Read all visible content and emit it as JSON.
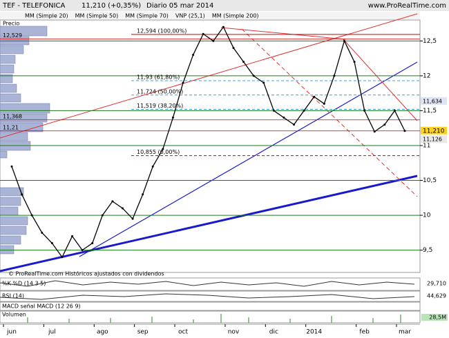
{
  "chart_data": {
    "type": "line",
    "instrument": "TEF - TELEFONICA",
    "last_price": "11,210 (+0,35%)",
    "period": "Diario  05 mar 2014",
    "site": "www.ProRealTime.com",
    "price_label": "Precio",
    "footnote": "© ProRealTime.com  Históricos ajustados con dividendos",
    "legend_items": [
      {
        "name": "MM (Simple 20)",
        "color": "#e03030"
      },
      {
        "name": "MM (Simple 50)",
        "color": "#808080"
      },
      {
        "name": "MM (Simple 70)",
        "color": "#1a1acc"
      },
      {
        "name": "VNP (25,1)",
        "color": "#b0a0e0"
      },
      {
        "name": "MM (Simple 200)",
        "color": "#1a7a1a"
      }
    ],
    "categories": [
      "jun",
      null,
      null,
      null,
      "jul",
      null,
      null,
      null,
      null,
      "ago",
      null,
      null,
      null,
      "sep",
      null,
      null,
      null,
      "oct",
      null,
      null,
      null,
      null,
      "nov",
      null,
      null,
      null,
      "dic",
      null,
      null,
      null,
      "2014",
      null,
      null,
      null,
      null,
      "feb",
      null,
      null,
      null,
      "mar"
    ],
    "series": [
      {
        "name": "Precio",
        "color": "#000000",
        "values": [
          10.7,
          10.3,
          10.0,
          9.75,
          9.6,
          9.4,
          9.7,
          9.5,
          9.6,
          10.0,
          10.2,
          10.1,
          9.95,
          10.3,
          10.7,
          10.95,
          11.4,
          11.9,
          12.3,
          12.6,
          12.5,
          12.7,
          12.4,
          12.2,
          12.0,
          11.9,
          11.5,
          11.4,
          11.3,
          11.5,
          11.7,
          11.6,
          12.0,
          12.5,
          12.2,
          11.5,
          11.2,
          11.3,
          11.5,
          11.21
        ]
      }
    ],
    "ylim": [
      9.18,
      12.8
    ],
    "yticks": [
      {
        "value": 9.5,
        "label": "9,5"
      },
      {
        "value": 10,
        "label": "10"
      },
      {
        "value": 10.5,
        "label": "10,5"
      },
      {
        "value": 11,
        "label": "11"
      },
      {
        "value": 11.5,
        "label": "11,5"
      },
      {
        "value": 12,
        "label": "12"
      },
      {
        "value": 12.5,
        "label": "12,5"
      }
    ],
    "fib_levels": [
      {
        "value": 12.594,
        "label": "12,594 (100,00%)"
      },
      {
        "value": 11.93,
        "label": "11,93 (61,80%)"
      },
      {
        "value": 11.724,
        "label": "11,724 (50,00%)"
      },
      {
        "value": 11.519,
        "label": "11,519 (38,20%)"
      },
      {
        "value": 10.855,
        "label": "10,855 (0,00%)"
      }
    ],
    "profile_labels": [
      {
        "value": 12.529,
        "label": "12,529"
      },
      {
        "value": 11.368,
        "label": "11,368"
      },
      {
        "value": 11.21,
        "label": "11,21"
      }
    ],
    "badges": [
      {
        "value": 11.634,
        "label": "11,634",
        "color": "#dde4f4"
      },
      {
        "value": 11.21,
        "label": "11,210",
        "color": "#ffd21e"
      },
      {
        "value": 11.126,
        "label": "11,126",
        "color": "#e8e8e8"
      }
    ],
    "panels": [
      {
        "label": "%K %D (14 3 5)",
        "value": "29,710"
      },
      {
        "label": "RSI (14)",
        "value": "44,629"
      },
      {
        "label": "MACD  señal  MACD (12 26 9)"
      },
      {
        "label": "Volumen",
        "value": "28,5M"
      }
    ]
  }
}
